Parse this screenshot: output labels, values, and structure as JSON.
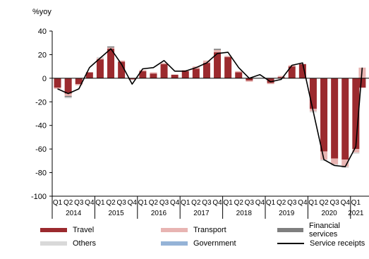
{
  "chart_data": {
    "type": "bar",
    "stacked": true,
    "title": "",
    "ylabel": "%yoy",
    "ylim": [
      -100,
      40
    ],
    "yticks": [
      "40",
      "20",
      "0",
      "-20",
      "-40",
      "-60",
      "-80",
      "-100"
    ],
    "quarter_labels": [
      "Q1",
      "Q2",
      "Q3",
      "Q4",
      "Q1",
      "Q2",
      "Q3",
      "Q4",
      "Q1",
      "Q2",
      "Q3",
      "Q4",
      "Q1",
      "Q2",
      "Q3",
      "Q4",
      "Q1",
      "Q2",
      "Q3",
      "Q4",
      "Q1",
      "Q2",
      "Q3",
      "Q4",
      "Q1",
      "Q2",
      "Q3",
      "Q4",
      "Q1"
    ],
    "years": [
      {
        "label": "2014",
        "start": 0,
        "count": 4
      },
      {
        "label": "2015",
        "start": 4,
        "count": 4
      },
      {
        "label": "2016",
        "start": 8,
        "count": 4
      },
      {
        "label": "2017",
        "start": 12,
        "count": 4
      },
      {
        "label": "2018",
        "start": 16,
        "count": 4
      },
      {
        "label": "2019",
        "start": 20,
        "count": 4
      },
      {
        "label": "2020",
        "start": 24,
        "count": 4
      },
      {
        "label": "2021",
        "start": 28,
        "count": 1
      }
    ],
    "series": [
      {
        "name": "Travel",
        "color": "#9b2a2e",
        "values": [
          -8,
          -13,
          -5,
          5,
          16,
          25,
          14,
          -1,
          6,
          4,
          12,
          3,
          6,
          8,
          13,
          22,
          18,
          5,
          -2,
          0,
          -4,
          1,
          10,
          12,
          -26,
          -62,
          -68,
          -69,
          -60
        ]
      },
      {
        "name": "Transport",
        "color": "#e8b4b2",
        "values": [
          -1,
          -2,
          -1,
          0,
          1,
          1,
          1,
          0,
          1,
          1,
          1,
          0,
          1,
          2,
          2,
          2,
          1,
          1,
          -1,
          0,
          -1,
          1,
          1,
          0,
          -2,
          -7,
          -5,
          -6,
          -3
        ]
      },
      {
        "name": "Financial services",
        "color": "#7f7f7f",
        "values": [
          0,
          -1,
          0,
          0,
          0,
          1,
          0,
          0,
          0,
          0,
          0,
          0,
          0,
          0,
          0,
          1,
          0,
          0,
          0,
          0,
          0,
          0,
          0,
          0,
          0,
          0,
          0,
          0,
          0
        ]
      },
      {
        "name": "Others",
        "color": "#d9d9d9",
        "values": [
          0,
          -1,
          0,
          0,
          1,
          0,
          0,
          0,
          0,
          0,
          0,
          0,
          0,
          0,
          0,
          0,
          0,
          0,
          0,
          0,
          0,
          0,
          0,
          0,
          -1,
          -1,
          -1,
          -1,
          -1
        ]
      },
      {
        "name": "Government",
        "color": "#95b3d7",
        "values": [
          0,
          0,
          0,
          0,
          0,
          0,
          0,
          0,
          0,
          0,
          0,
          0,
          0,
          0,
          0,
          0,
          0,
          0,
          0,
          0,
          0,
          0,
          0,
          0,
          0,
          0,
          0,
          0,
          0
        ]
      }
    ],
    "extra_bar": {
      "index": 28,
      "offset": 0.6,
      "value": 9,
      "color": "#e8b4b2",
      "base_value": -8,
      "base_color": "#9b2a2e"
    },
    "line": {
      "name": "Service receipts",
      "color": "#000000",
      "values": [
        -9,
        -13,
        -9,
        9,
        17,
        25,
        12,
        -5,
        8,
        9,
        15,
        6,
        6,
        9,
        13,
        21,
        22,
        9,
        0,
        3,
        -3,
        -1,
        11,
        13,
        -28,
        -69,
        -74,
        -75,
        -58,
        9
      ]
    },
    "legend": {
      "placement": "bottom",
      "items": [
        "Travel",
        "Transport",
        "Financial services",
        "Others",
        "Government",
        "Service receipts"
      ]
    }
  }
}
